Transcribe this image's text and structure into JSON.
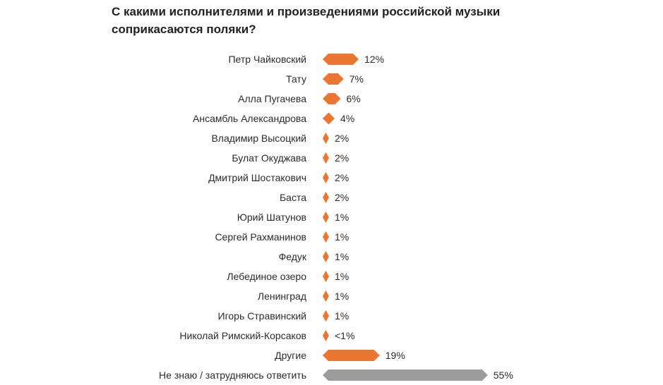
{
  "chart_data": {
    "type": "bar",
    "orientation": "horizontal",
    "title": "С какими исполнителями и произведениями российской музыки соприкасаются поляки?",
    "unit": "%",
    "xlim": [
      0,
      55
    ],
    "grid": false,
    "legend": "none",
    "colors": {
      "main": "#ea7631",
      "unknown": "#9c9c9c"
    },
    "categories": [
      "Петр Чайковский",
      "Тату",
      "Алла Пугачева",
      "Ансамбль Александрова",
      "Владимир Высоцкий",
      "Булат Окуджава",
      "Дмитрий Шостакович",
      "Баста",
      "Юрий Шатунов",
      "Сергей Рахманинов",
      "Федук",
      "Лебединое озеро",
      "Ленинград",
      "Игорь Стравинский",
      "Николай Римский-Корсаков",
      "Другие",
      "Не знаю / затрудняюсь ответить"
    ],
    "values": [
      12,
      7,
      6,
      4,
      2,
      2,
      2,
      2,
      1,
      1,
      1,
      1,
      1,
      1,
      0.5,
      19,
      55
    ],
    "value_labels": [
      "12%",
      "7%",
      "6%",
      "4%",
      "2%",
      "2%",
      "2%",
      "2%",
      "1%",
      "1%",
      "1%",
      "1%",
      "1%",
      "1%",
      "<1%",
      "19%",
      "55%"
    ],
    "bar_colors": [
      "main",
      "main",
      "main",
      "main",
      "main",
      "main",
      "main",
      "main",
      "main",
      "main",
      "main",
      "main",
      "main",
      "main",
      "main",
      "main",
      "unknown"
    ]
  }
}
